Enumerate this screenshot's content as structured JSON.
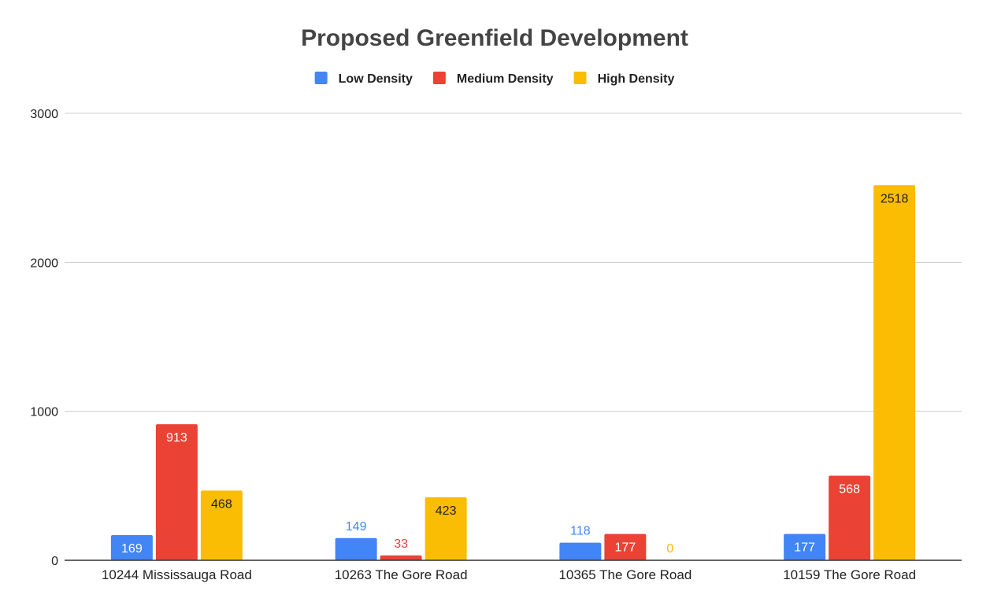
{
  "chart_data": {
    "type": "bar",
    "title": "Proposed Greenfield Development",
    "xlabel": "",
    "ylabel": "",
    "categories": [
      "10244 Mississauga Road",
      "10263 The Gore Road",
      "10365 The Gore Road",
      "10159 The Gore Road"
    ],
    "series": [
      {
        "name": "Low Density",
        "color": "#4285f4",
        "values": [
          169,
          149,
          118,
          177
        ]
      },
      {
        "name": "Medium Density",
        "color": "#ea4335",
        "values": [
          913,
          33,
          177,
          568
        ]
      },
      {
        "name": "High Density",
        "color": "#fbbc04",
        "values": [
          468,
          423,
          0,
          2518
        ]
      }
    ],
    "ylim": [
      0,
      3000
    ],
    "yticks": [
      0,
      1000,
      2000,
      3000
    ],
    "grid": true,
    "legend_position": "top-center",
    "data_labels": true
  }
}
